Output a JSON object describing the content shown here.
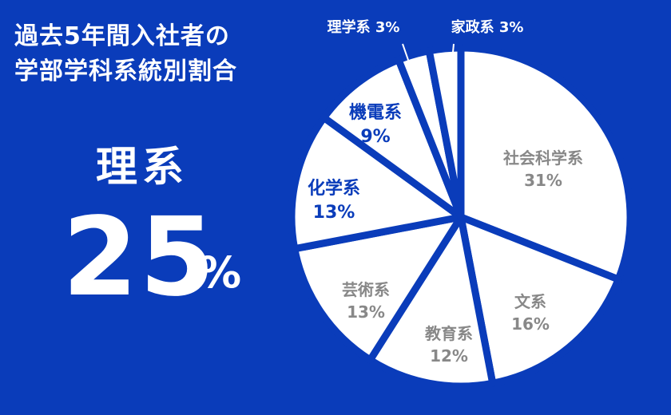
{
  "header": {
    "title_line1": "過去5年間入社者の",
    "title_line2": "学部学科系統別割合"
  },
  "highlight": {
    "label": "理系",
    "value": "25",
    "unit": "%"
  },
  "colors": {
    "background": "#0a3cba",
    "slice": "#ffffff",
    "label_gray": "#888888",
    "label_blue": "#0a3cba",
    "label_white": "#ffffff"
  },
  "chart_data": {
    "type": "pie",
    "slices": [
      {
        "name": "社会科学系",
        "value": 31,
        "label": "31%"
      },
      {
        "name": "文系",
        "value": 16,
        "label": "16%"
      },
      {
        "name": "教育系",
        "value": 12,
        "label": "12%"
      },
      {
        "name": "芸術系",
        "value": 13,
        "label": "13%"
      },
      {
        "name": "化学系",
        "value": 13,
        "label": "13%"
      },
      {
        "name": "機電系",
        "value": 9,
        "label": "9%"
      },
      {
        "name": "理学系",
        "value": 3,
        "label": "3%"
      },
      {
        "name": "家政系",
        "value": 3,
        "label": "3%"
      }
    ]
  }
}
